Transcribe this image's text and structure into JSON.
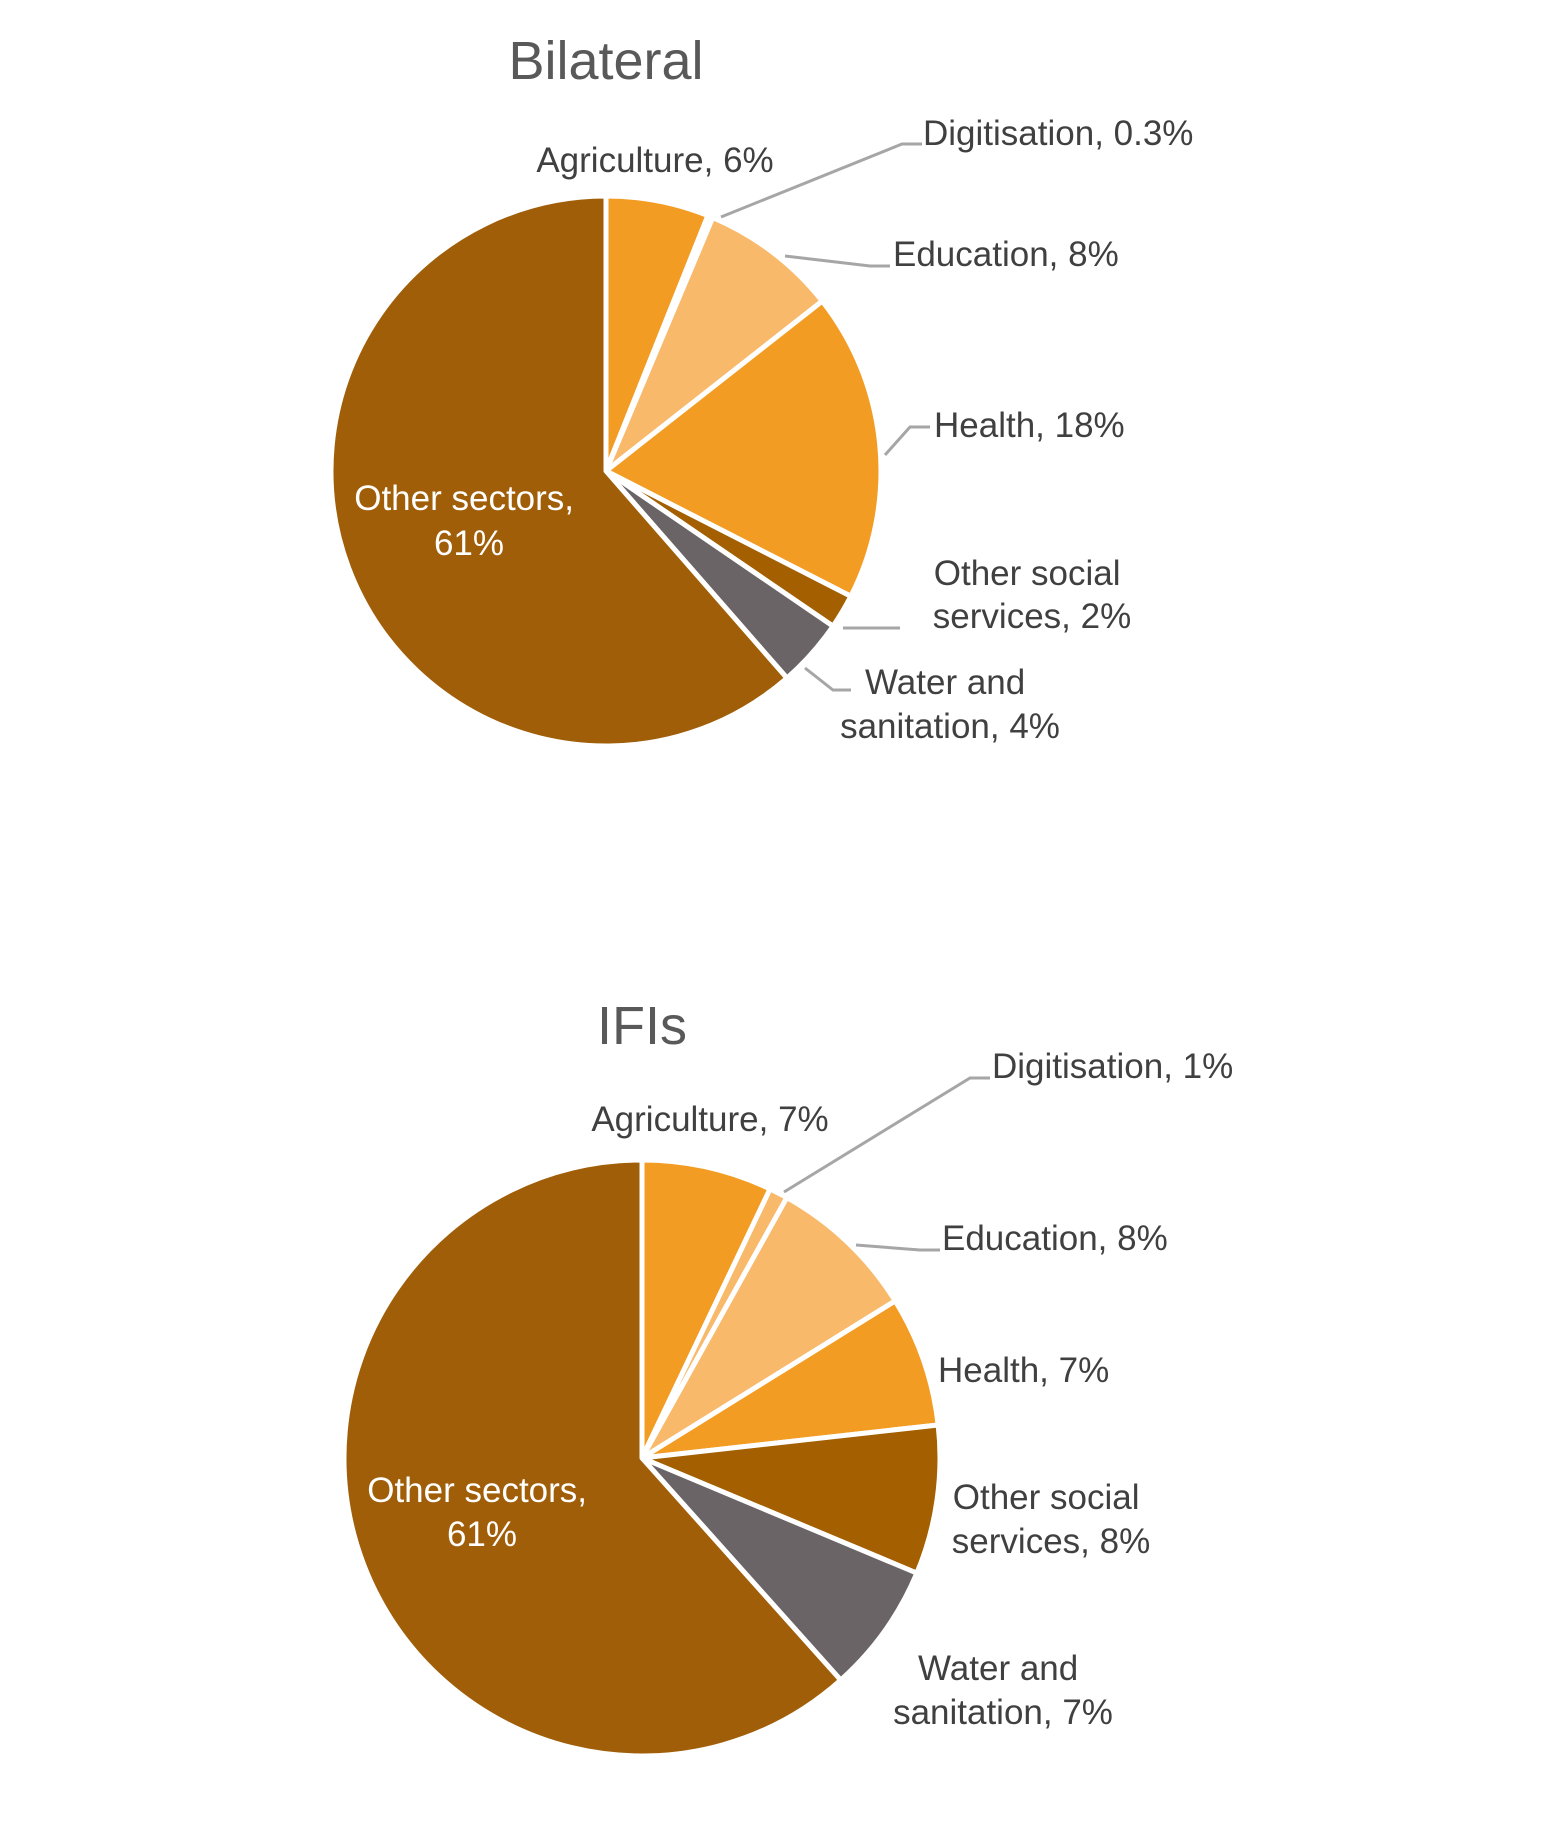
{
  "chart_data": [
    {
      "type": "pie",
      "title": "Bilateral",
      "start_angle_deg": 0,
      "direction": "clockwise",
      "slices": [
        {
          "name": "Agriculture",
          "value": 6,
          "label": "Agriculture, 6%",
          "color": "#F39C23"
        },
        {
          "name": "Digitisation",
          "value": 0.3,
          "label": "Digitisation, 0.3%",
          "color": "#F8B96B"
        },
        {
          "name": "Education",
          "value": 8,
          "label": "Education, 8%",
          "color": "#F8B96B"
        },
        {
          "name": "Health",
          "value": 18,
          "label": "Health, 18%",
          "color": "#F39C23"
        },
        {
          "name": "Other social services",
          "value": 2,
          "label": "Other social services, 2%",
          "color": "#A35F00"
        },
        {
          "name": "Water and sanitation",
          "value": 4,
          "label": "Water and sanitation, 4%",
          "color": "#6A6466"
        },
        {
          "name": "Other sectors",
          "value": 61,
          "label": "Other sectors, 61%",
          "color": "#A05E08"
        }
      ]
    },
    {
      "type": "pie",
      "title": "IFIs",
      "start_angle_deg": 0,
      "direction": "clockwise",
      "slices": [
        {
          "name": "Agriculture",
          "value": 7,
          "label": "Agriculture, 7%",
          "color": "#F39C23"
        },
        {
          "name": "Digitisation",
          "value": 1,
          "label": "Digitisation, 1%",
          "color": "#F8B96B"
        },
        {
          "name": "Education",
          "value": 8,
          "label": "Education, 8%",
          "color": "#F8B96B"
        },
        {
          "name": "Health",
          "value": 7,
          "label": "Health, 7%",
          "color": "#F39C23"
        },
        {
          "name": "Other social services",
          "value": 8,
          "label": "Other social services, 8%",
          "color": "#A35F00"
        },
        {
          "name": "Water and sanitation",
          "value": 7,
          "label": "Water and sanitation, 7%",
          "color": "#6A6466"
        },
        {
          "name": "Other sectors",
          "value": 61,
          "label": "Other sectors, 61%",
          "color": "#A05E08"
        }
      ]
    }
  ]
}
